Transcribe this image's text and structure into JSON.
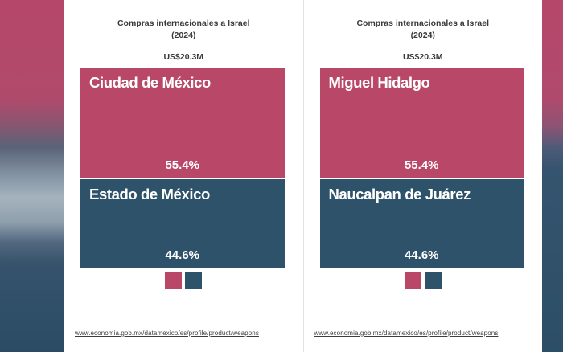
{
  "colors": {
    "pink": "#b84768",
    "blue": "#2e5269",
    "card_bg": "#ffffff",
    "divider": "#dfe3e6",
    "title_text": "#3a3a3a",
    "source_text": "#3d3d3d"
  },
  "panels": [
    {
      "title_line1": "Compras internacionales a Israel",
      "title_line2": "(2024)",
      "total": "US$20.3M",
      "segments": [
        {
          "label": "Ciudad de México",
          "pct": "55.4%",
          "value": 55.4,
          "color": "#b84768"
        },
        {
          "label": "Estado de México",
          "pct": "44.6%",
          "value": 44.6,
          "color": "#2e5269"
        }
      ],
      "source_url": "www.economia.gob.mx/datamexico/es/profile/product/weapons"
    },
    {
      "title_line1": "Compras internacionales a Israel",
      "title_line2": "(2024)",
      "total": "US$20.3M",
      "segments": [
        {
          "label": "Miguel Hidalgo",
          "pct": "55.4%",
          "value": 55.4,
          "color": "#b84768"
        },
        {
          "label": "Naucalpan de Juárez",
          "pct": "44.6%",
          "value": 44.6,
          "color": "#2e5269"
        }
      ],
      "source_url": "www.economia.gob.mx/datamexico/es/profile/product/weapons"
    }
  ],
  "chart_data": [
    {
      "type": "bar",
      "title": "Compras internacionales a Israel (2024)",
      "subtitle": "US$20.3M",
      "categories": [
        "Ciudad de México",
        "Estado de México"
      ],
      "values": [
        55.4,
        44.6
      ],
      "unit": "%",
      "colors": [
        "#b84768",
        "#2e5269"
      ],
      "legend_position": "bottom",
      "source": "www.economia.gob.mx/datamexico/es/profile/product/weapons"
    },
    {
      "type": "bar",
      "title": "Compras internacionales a Israel (2024)",
      "subtitle": "US$20.3M",
      "categories": [
        "Miguel Hidalgo",
        "Naucalpan de Juárez"
      ],
      "values": [
        55.4,
        44.6
      ],
      "unit": "%",
      "colors": [
        "#b84768",
        "#2e5269"
      ],
      "legend_position": "bottom",
      "source": "www.economia.gob.mx/datamexico/es/profile/product/weapons"
    }
  ]
}
